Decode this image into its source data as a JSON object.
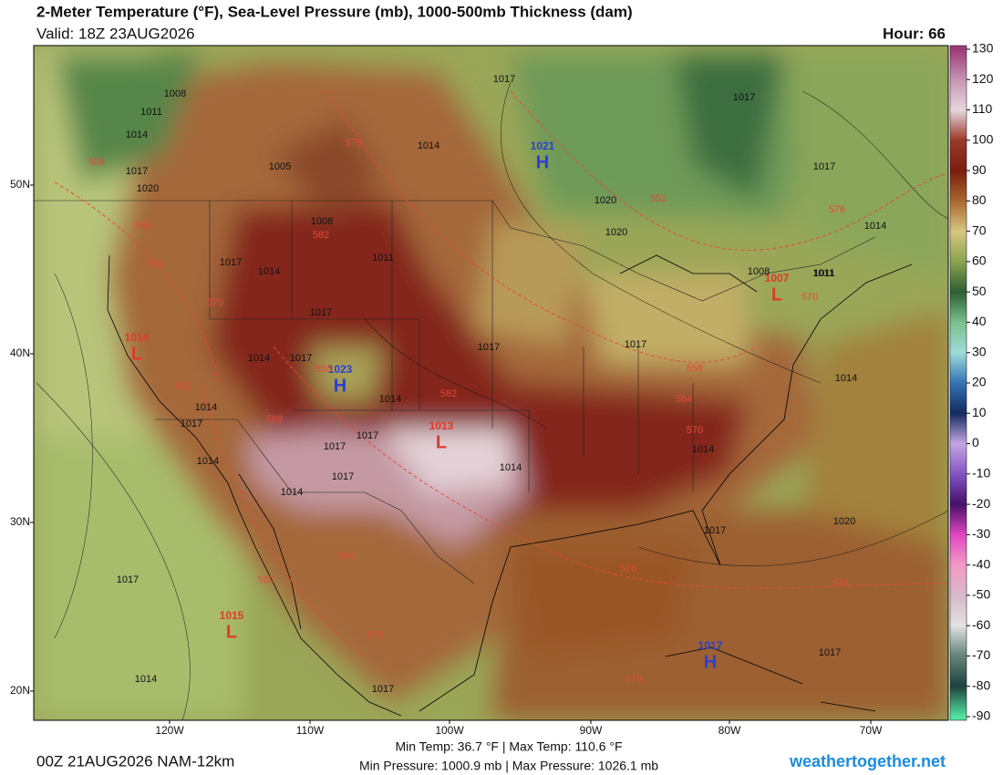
{
  "header": {
    "title": "2-Meter Temperature (°F), Sea-Level Pressure (mb), 1000-500mb Thickness (dam)",
    "valid": "Valid: 18Z 23AUG2026",
    "hour": "Hour: 66"
  },
  "colorbar": {
    "ticks": [
      130,
      120,
      110,
      100,
      90,
      80,
      70,
      60,
      50,
      40,
      30,
      20,
      10,
      0,
      -10,
      -20,
      -30,
      -40,
      -50,
      -60,
      -70,
      -80,
      -90
    ],
    "colors": [
      "#9c3a78",
      "#c895b4",
      "#e6d6de",
      "#9a3a2a",
      "#7a1c10",
      "#a8682e",
      "#d8c682",
      "#8aa450",
      "#2e5e34",
      "#78c08c",
      "#9fdcd8",
      "#3474b4",
      "#142a60",
      "#c4a6e2",
      "#8454c4",
      "#46106a",
      "#e046c2",
      "#f29ac6",
      "#d8b8c8",
      "#e2e2e2",
      "#628478",
      "#1e423e",
      "#52e2a2"
    ]
  },
  "axes": {
    "lat_labels": [
      "50N",
      "40N",
      "30N",
      "20N"
    ],
    "lon_labels": [
      "120W",
      "110W",
      "100W",
      "90W",
      "80W",
      "70W"
    ]
  },
  "centers": [
    {
      "label": "H",
      "pressure": 1021
    },
    {
      "label": "H",
      "pressure": 1023
    },
    {
      "label": "L",
      "pressure": 1014
    },
    {
      "label": "L",
      "pressure": 1013
    },
    {
      "label": "L",
      "pressure": 1007
    },
    {
      "label": "H",
      "pressure": 1017
    },
    {
      "label": "L",
      "pressure": 1015
    }
  ],
  "isobar_labels": [
    1008,
    1011,
    1014,
    1017,
    1020,
    1005,
    1017,
    1014,
    1020,
    1020,
    1017,
    1017,
    1014,
    1011,
    1011,
    1008,
    1017,
    1017,
    1014,
    1014,
    1014,
    1017,
    1014,
    1017,
    1017,
    1017,
    1014,
    1017,
    1014,
    1014,
    1017,
    1017,
    1014,
    1017,
    1020,
    1017,
    1014,
    1017,
    1008,
    1011,
    1014,
    1017
  ],
  "thickness_labels": [
    558,
    558,
    564,
    570,
    576,
    582,
    552,
    558,
    564,
    570,
    576,
    582,
    588,
    582,
    558,
    564,
    570,
    582,
    576,
    576,
    576,
    570
  ],
  "footer": {
    "run": "00Z 21AUG2026 NAM-12km",
    "temps": "Min Temp:  36.7 °F | Max Temp: 110.6 °F",
    "pressures": "Min Pressure: 1000.9 mb | Max Pressure: 1026.1 mb",
    "site": "weathertogether.net"
  }
}
